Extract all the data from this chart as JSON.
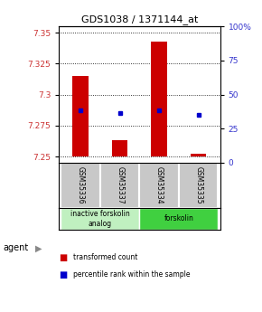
{
  "title": "GDS1038 / 1371144_at",
  "samples": [
    "GSM35336",
    "GSM35337",
    "GSM35334",
    "GSM35335"
  ],
  "bar_base": 7.25,
  "bar_tops": [
    7.315,
    7.263,
    7.343,
    7.252
  ],
  "percentile_values": [
    7.287,
    7.285,
    7.287,
    7.284
  ],
  "ylim_left": [
    7.245,
    7.355
  ],
  "yticks_left": [
    7.25,
    7.275,
    7.3,
    7.325,
    7.35
  ],
  "yticks_right": [
    0,
    25,
    50,
    75,
    100
  ],
  "ylim_right": [
    0,
    100
  ],
  "groups": [
    {
      "label": "inactive forskolin\nanalog",
      "start": 0,
      "end": 2,
      "color": "#c0f0c0"
    },
    {
      "label": "forskolin",
      "start": 2,
      "end": 4,
      "color": "#40d040"
    }
  ],
  "bar_color": "#cc0000",
  "percentile_color": "#0000cc",
  "bar_width": 0.4,
  "agent_label": "agent",
  "legend_items": [
    {
      "color": "#cc0000",
      "label": "transformed count"
    },
    {
      "color": "#0000cc",
      "label": "percentile rank within the sample"
    }
  ],
  "background_color": "#ffffff",
  "sample_box_color": "#c8c8c8"
}
